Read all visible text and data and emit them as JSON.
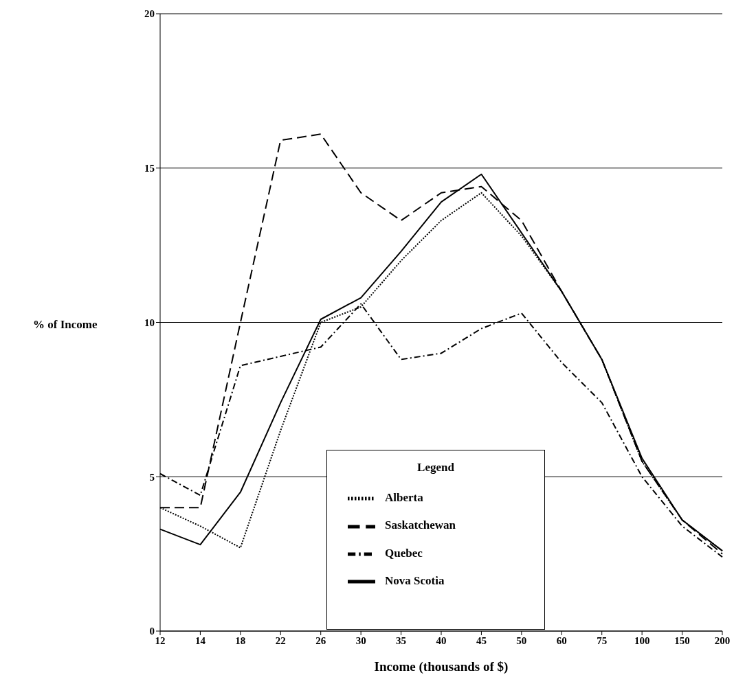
{
  "chart_data": {
    "type": "line",
    "xlabel": "Income (thousands of $)",
    "ylabel": "% of Income",
    "legend_title": "Legend",
    "categories": [
      "12",
      "14",
      "18",
      "22",
      "26",
      "30",
      "35",
      "40",
      "45",
      "50",
      "60",
      "75",
      "100",
      "150",
      "200"
    ],
    "series": [
      {
        "name": "Alberta",
        "color": "#000000",
        "line_style": "dotted",
        "values": [
          4.0,
          3.4,
          2.7,
          6.5,
          10.0,
          10.5,
          12.0,
          13.3,
          14.2,
          12.8,
          11.0,
          8.8,
          5.5,
          3.6,
          2.6
        ]
      },
      {
        "name": "Saskatchewan",
        "color": "#000000",
        "line_style": "dashed",
        "values": [
          4.0,
          4.0,
          10.0,
          15.9,
          16.1,
          14.2,
          13.3,
          14.2,
          14.4,
          13.3,
          11.0,
          8.8,
          5.5,
          3.6,
          2.5
        ]
      },
      {
        "name": "Quebec",
        "color": "#000000",
        "line_style": "dashdot",
        "values": [
          5.1,
          4.4,
          8.6,
          8.9,
          9.2,
          10.6,
          8.8,
          9.0,
          9.8,
          10.3,
          8.7,
          7.4,
          5.0,
          3.4,
          2.4
        ]
      },
      {
        "name": "Nova Scotia",
        "color": "#000000",
        "line_style": "solid",
        "values": [
          3.3,
          2.8,
          4.5,
          7.4,
          10.1,
          10.8,
          12.3,
          13.9,
          14.8,
          12.9,
          11.0,
          8.8,
          5.6,
          3.6,
          2.6
        ]
      }
    ],
    "ylim": [
      0,
      20
    ],
    "yticks": [
      0,
      5,
      10,
      15,
      20
    ],
    "grid": "y",
    "legend": "bottom",
    "marker": "none"
  }
}
